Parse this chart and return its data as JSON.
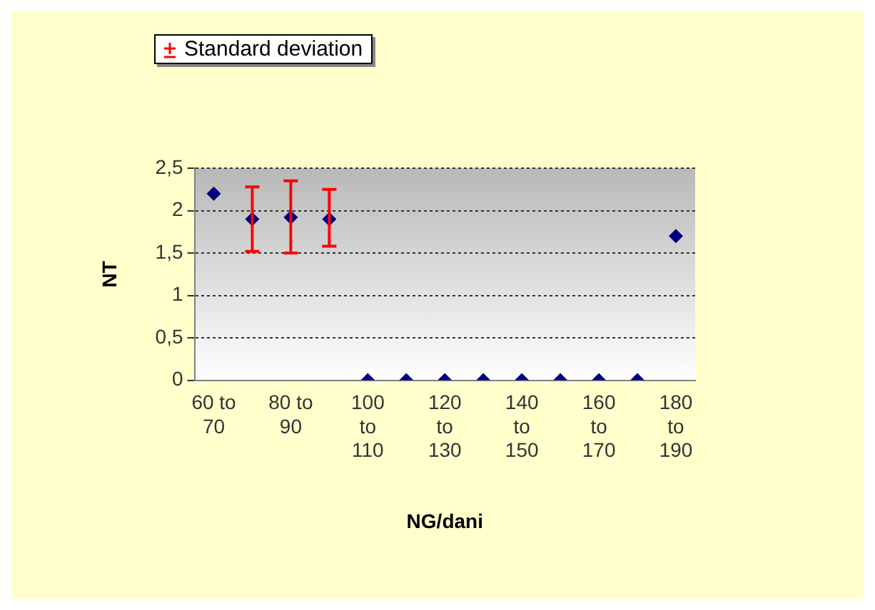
{
  "chart_data": {
    "type": "scatter",
    "xlabel": "NG/dani",
    "ylabel": "NT",
    "categories": [
      "60 to 70",
      null,
      "80 to 90",
      null,
      "100 to 110",
      null,
      "120 to 130",
      null,
      "140 to 150",
      null,
      "160 to 170",
      null,
      "180 to 190"
    ],
    "series": [
      {
        "name": "Standard deviation",
        "color": "#000080",
        "values": [
          2.2,
          1.9,
          1.92,
          1.9,
          0,
          0,
          0,
          0,
          0,
          0,
          0,
          0,
          1.7
        ],
        "errors": [
          null,
          [
            1.52,
            2.28
          ],
          [
            1.5,
            2.35
          ],
          [
            1.58,
            2.25
          ],
          null,
          null,
          null,
          null,
          null,
          null,
          null,
          null,
          null
        ]
      }
    ],
    "ylim": [
      0,
      2.5
    ],
    "yticks": [
      {
        "value": 0,
        "label": "0"
      },
      {
        "value": 0.5,
        "label": "0,5"
      },
      {
        "value": 1,
        "label": "1"
      },
      {
        "value": 1.5,
        "label": "1,5"
      },
      {
        "value": 2,
        "label": "2"
      },
      {
        "value": 2.5,
        "label": "2,5"
      }
    ],
    "grid": "y",
    "legend": "top left",
    "marker": "diamond"
  }
}
